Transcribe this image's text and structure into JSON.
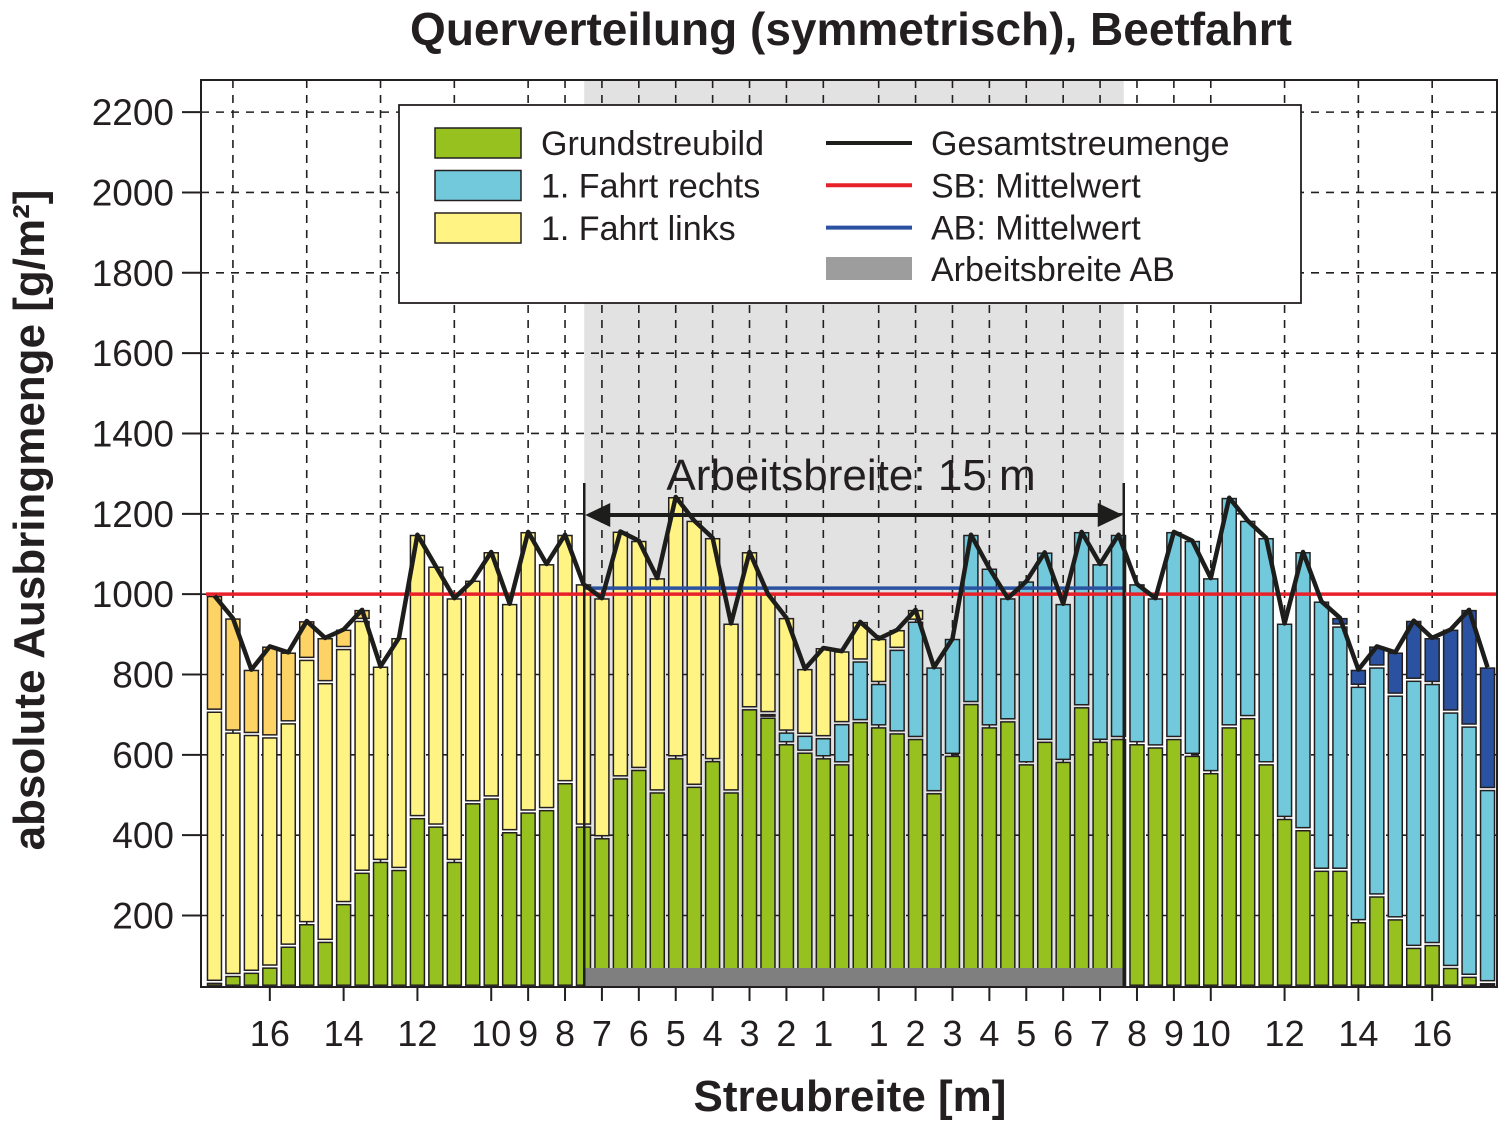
{
  "chart_data": {
    "type": "bar",
    "stacked": true,
    "title": "Querverteilung (symmetrisch), Beetfahrt",
    "xlabel": "Streubreite [m]",
    "ylabel": "absolute Ausbringmenge [g/m²]",
    "ylim": [
      22,
      2280
    ],
    "yticks": [
      200,
      400,
      600,
      800,
      1000,
      1200,
      1400,
      1600,
      1800,
      2000,
      2200
    ],
    "xticks_left": [
      16,
      14,
      12,
      10,
      9,
      8,
      7,
      6,
      5,
      4,
      3,
      2,
      1
    ],
    "xticks_right": [
      1,
      2,
      3,
      4,
      5,
      6,
      7,
      8,
      9,
      10,
      12,
      14,
      16
    ],
    "grid": true,
    "legend_position": "top",
    "bin_width_m": 0.5,
    "x_start_m": -17.25,
    "working_width_label": "Arbeitsbreite: 15 m",
    "working_width_m": 15,
    "sb_mean": 1000,
    "ab_mean": 1015,
    "series": [
      {
        "name": "Grundstreubild",
        "color": "#97c11f",
        "values": [
          33,
          50,
          58,
          71,
          123,
          179,
          135,
          229,
          307,
          334,
          314,
          443,
          422,
          334,
          480,
          492,
          408,
          457,
          463,
          530,
          422,
          393,
          542,
          563,
          507,
          592,
          521,
          585,
          507,
          714,
          693,
          627,
          606,
          592,
          577,
          682,
          669,
          654,
          640,
          505,
          598,
          727,
          669,
          684,
          577,
          633,
          583,
          719,
          633,
          640,
          627,
          619,
          640,
          598,
          555,
          669,
          692,
          577,
          441,
          413,
          312,
          312,
          184,
          248,
          191,
          120,
          127,
          70,
          48,
          32
        ]
      },
      {
        "name": "1. Fahrt rechts",
        "color": "#72c9dc",
        "values": [
          0,
          0,
          0,
          0,
          0,
          0,
          0,
          0,
          0,
          0,
          0,
          0,
          0,
          0,
          0,
          0,
          0,
          0,
          0,
          0,
          0,
          0,
          0,
          0,
          0,
          0,
          0,
          0,
          0,
          0,
          9,
          29,
          42,
          50,
          100,
          151,
          108,
          208,
          292,
          313,
          291,
          421,
          395,
          306,
          455,
          471,
          393,
          436,
          442,
          508,
          398,
          371,
          515,
          535,
          485,
          571,
          491,
          563,
          486,
          692,
          670,
          608,
          586,
          570,
          557,
          665,
          650,
          636,
          623,
          481
        ]
      },
      {
        "name": "1. Fahrt links",
        "color": "#fff384",
        "values": [
          675,
          606,
          592,
          573,
          556,
          658,
          644,
          635,
          627,
          486,
          577,
          705,
          647,
          656,
          554,
          613,
          568,
          698,
          612,
          618,
          603,
          597,
          614,
          570,
          533,
          650,
          662,
          555,
          420,
          391,
          298,
          285,
          166,
          224,
          181,
          98,
          112,
          49,
          29,
          0,
          0,
          0,
          0,
          0,
          0,
          0,
          0,
          0,
          0,
          0,
          0,
          0,
          0,
          0,
          0,
          0,
          0,
          0,
          0,
          0,
          0,
          0,
          0,
          0,
          0,
          0,
          0,
          0,
          0,
          0
        ]
      },
      {
        "color_left": "#fdd366",
        "color_right": "#2a52a0",
        "values": [
          288,
          284,
          162,
          226,
          176,
          96,
          112,
          48,
          27,
          0,
          0,
          0,
          0,
          0,
          0,
          0,
          0,
          0,
          0,
          0,
          0,
          0,
          0,
          0,
          0,
          0,
          0,
          0,
          0,
          0,
          0,
          0,
          0,
          0,
          0,
          0,
          0,
          0,
          0,
          0,
          0,
          0,
          0,
          0,
          0,
          0,
          0,
          0,
          0,
          0,
          0,
          0,
          0,
          0,
          0,
          0,
          0,
          0,
          0,
          0,
          0,
          21,
          42,
          52,
          107,
          149,
          114,
          206,
          290,
          305
        ]
      }
    ],
    "lines": [
      {
        "name": "Gesamtstreumenge",
        "color": "#1d1d1b",
        "values": [
          996,
          940,
          812,
          870,
          855,
          933,
          891,
          912,
          961,
          820,
          891,
          1148,
          1069,
          990,
          1034,
          1105,
          976,
          1155,
          1075,
          1148,
          1025,
          990,
          1156,
          1133,
          1040,
          1242,
          1183,
          1140,
          927,
          1105,
          1000,
          941,
          814,
          866,
          858,
          931,
          889,
          911,
          961,
          818,
          889,
          1148,
          1064,
          990,
          1032,
          1104,
          976,
          1155,
          1075,
          1148,
          1025,
          990,
          1155,
          1133,
          1040,
          1240,
          1183,
          1140,
          927,
          1105,
          982,
          941,
          812,
          870,
          855,
          934,
          891,
          912,
          961,
          818
        ]
      },
      {
        "name": "SB: Mittelwert",
        "color": "#e8202a"
      },
      {
        "name": "AB: Mittelwert",
        "color": "#2a52a0"
      }
    ],
    "area": {
      "name": "Arbeitsbreite AB",
      "color": "#9d9d9d",
      "shade": "#e2e2e2",
      "bar": "#7f7f7f"
    }
  }
}
